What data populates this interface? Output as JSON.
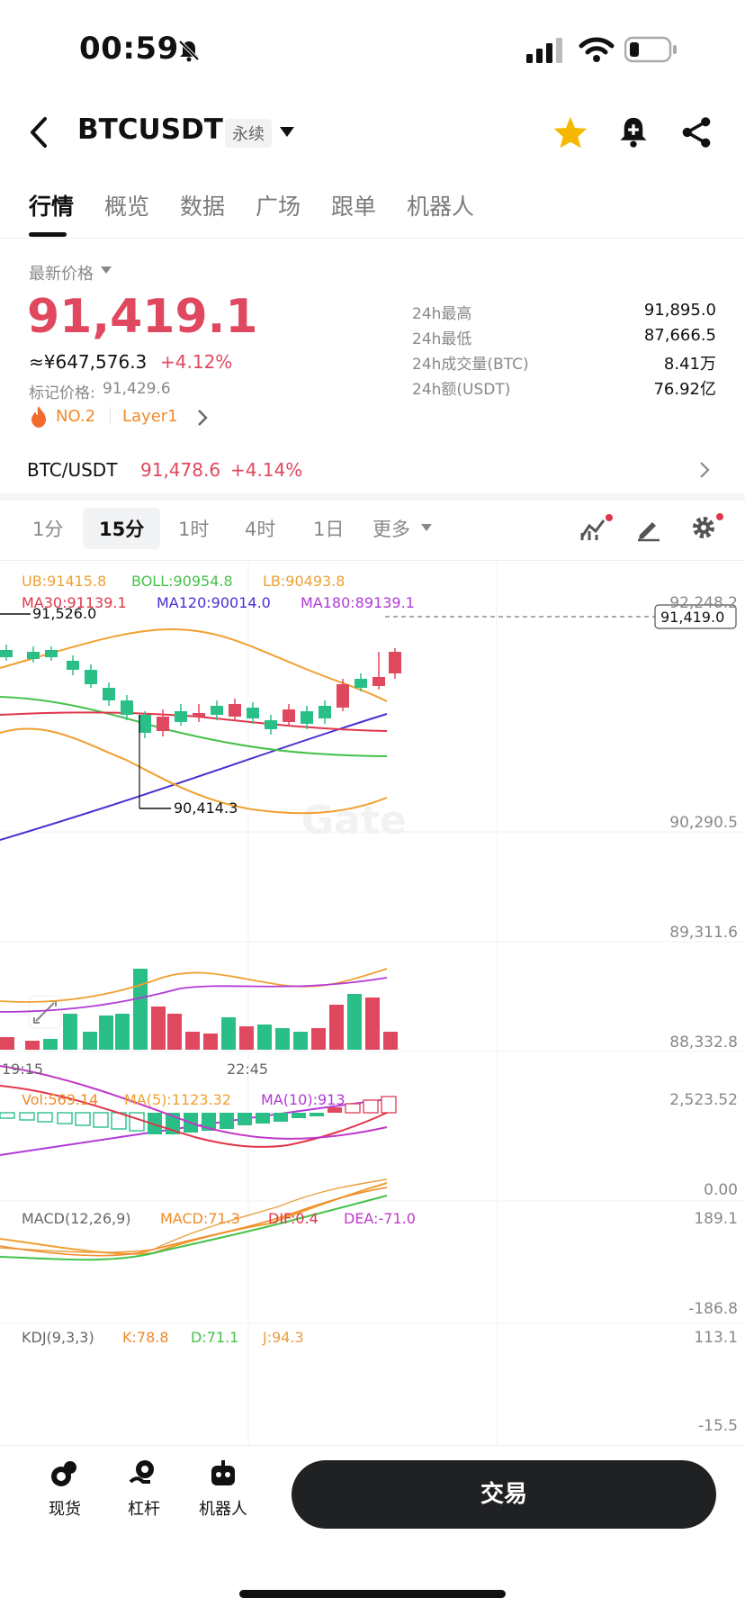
{
  "status_bar": {
    "time": "00:59"
  },
  "header": {
    "symbol": "BTCUSDT",
    "contract_type": "永续"
  },
  "tabs": [
    "行情",
    "概览",
    "数据",
    "广场",
    "跟单",
    "机器人"
  ],
  "price": {
    "label": "最新价格",
    "last": "91,419.1",
    "cny": "≈¥647,576.3",
    "change": "+4.12%",
    "mark_label": "标记价格:",
    "mark": "91,429.6",
    "rank": "NO.2",
    "category": "Layer1"
  },
  "stats": [
    {
      "label": "24h最高",
      "value": "91,895.0"
    },
    {
      "label": "24h最低",
      "value": "87,666.5"
    },
    {
      "label": "24h成交量(BTC)",
      "value": "8.41万"
    },
    {
      "label": "24h额(USDT)",
      "value": "76.92亿"
    }
  ],
  "spot": {
    "pair": "BTC/USDT",
    "price": "91,478.6",
    "change": "+4.14%"
  },
  "intervals": [
    "1分",
    "15分",
    "1时",
    "4时",
    "1日",
    "更多"
  ],
  "boll": {
    "ub": "UB:91415.8",
    "boll": "BOLL:90954.8",
    "lb": "LB:90493.8"
  },
  "ma": {
    "ma30": "MA30:91139.1",
    "ma120": "MA120:90014.0",
    "ma180": "MA180:89139.1"
  },
  "price_axis": [
    "92,248.2",
    "90,290.5",
    "89,311.6",
    "88,332.8"
  ],
  "current_price_tag": "91,419.0",
  "annotations": {
    "high": "91,526.0",
    "low": "90,414.3"
  },
  "time_axis": [
    "19:15",
    "22:45"
  ],
  "watermark": "Gate",
  "volume": {
    "vol": "Vol:569.14",
    "ma5": "MA(5):1123.32",
    "ma10": "MA(10):913",
    "axis_top": "2,523.52",
    "axis_bottom": "0.00"
  },
  "macd": {
    "title": "MACD(12,26,9)",
    "macd": "MACD:71.3",
    "dif": "DIF:0.4",
    "dea": "DEA:-71.0",
    "axis_top": "189.1",
    "axis_bottom": "-186.8"
  },
  "kdj": {
    "title": "KDJ(9,3,3)",
    "k": "K:78.8",
    "d": "D:71.1",
    "j": "J:94.3",
    "axis_top": "113.1",
    "axis_bottom": "-15.5"
  },
  "bottom_nav": {
    "spot": "现货",
    "margin": "杠杆",
    "bot": "机器人",
    "trade": "交易"
  },
  "colors": {
    "up": "#2bbf88",
    "down": "#e0485f",
    "boll": "#f0a030",
    "boll_mid": "#45c24a",
    "ma30": "#e0364a",
    "ma120": "#4b2fd0",
    "ma180": "#b13ad6",
    "macd_dea": "#c039c9"
  }
}
